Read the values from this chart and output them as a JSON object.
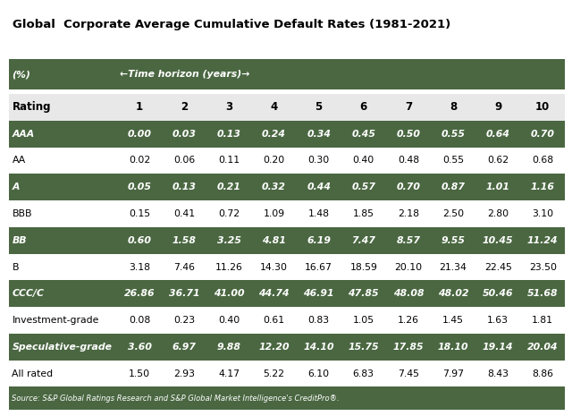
{
  "title": "Global  Corporate Average Cumulative Default Rates (1981-2021)",
  "subtitle_col1": "(%)",
  "subtitle_col2": "←Time horizon (years)→",
  "header_row": [
    "Rating",
    "1",
    "2",
    "3",
    "4",
    "5",
    "6",
    "7",
    "8",
    "9",
    "10"
  ],
  "rows": [
    {
      "label": "AAA",
      "shaded": true,
      "values": [
        "0.00",
        "0.03",
        "0.13",
        "0.24",
        "0.34",
        "0.45",
        "0.50",
        "0.55",
        "0.64",
        "0.70"
      ]
    },
    {
      "label": "AA",
      "shaded": false,
      "values": [
        "0.02",
        "0.06",
        "0.11",
        "0.20",
        "0.30",
        "0.40",
        "0.48",
        "0.55",
        "0.62",
        "0.68"
      ]
    },
    {
      "label": "A",
      "shaded": true,
      "values": [
        "0.05",
        "0.13",
        "0.21",
        "0.32",
        "0.44",
        "0.57",
        "0.70",
        "0.87",
        "1.01",
        "1.16"
      ]
    },
    {
      "label": "BBB",
      "shaded": false,
      "values": [
        "0.15",
        "0.41",
        "0.72",
        "1.09",
        "1.48",
        "1.85",
        "2.18",
        "2.50",
        "2.80",
        "3.10"
      ]
    },
    {
      "label": "BB",
      "shaded": true,
      "values": [
        "0.60",
        "1.58",
        "3.25",
        "4.81",
        "6.19",
        "7.47",
        "8.57",
        "9.55",
        "10.45",
        "11.24"
      ]
    },
    {
      "label": "B",
      "shaded": false,
      "values": [
        "3.18",
        "7.46",
        "11.26",
        "14.30",
        "16.67",
        "18.59",
        "20.10",
        "21.34",
        "22.45",
        "23.50"
      ]
    },
    {
      "label": "CCC/C",
      "shaded": true,
      "values": [
        "26.86",
        "36.71",
        "41.00",
        "44.74",
        "46.91",
        "47.85",
        "48.08",
        "48.02",
        "50.46",
        "51.68"
      ]
    },
    {
      "label": "Investment-grade",
      "shaded": false,
      "values": [
        "0.08",
        "0.23",
        "0.40",
        "0.61",
        "0.83",
        "1.05",
        "1.26",
        "1.45",
        "1.63",
        "1.81"
      ]
    },
    {
      "label": "Speculative-grade",
      "shaded": true,
      "values": [
        "3.60",
        "6.97",
        "9.88",
        "12.20",
        "14.10",
        "15.75",
        "17.85",
        "18.10",
        "19.14",
        "20.04"
      ]
    },
    {
      "label": "All rated",
      "shaded": false,
      "values": [
        "1.50",
        "2.93",
        "4.17",
        "5.22",
        "6.10",
        "6.83",
        "7.45",
        "7.97",
        "8.43",
        "8.86"
      ]
    }
  ],
  "source": "Source: S&P Global Ratings Research and S&P Global Market Intelligence's CreditPro®.",
  "shaded_bg": "#4a6741",
  "shaded_fg": "#ffffff",
  "unshaded_bg": "#ffffff",
  "unshaded_fg": "#000000",
  "header_bg": "#e8e8e8",
  "header_fg": "#000000",
  "subtitle_bg": "#4a6741",
  "subtitle_fg": "#ffffff",
  "fig_bg": "#ffffff",
  "title_fontsize": 9.5,
  "header_fontsize": 8.5,
  "data_fontsize": 7.8,
  "source_fontsize": 6.0
}
